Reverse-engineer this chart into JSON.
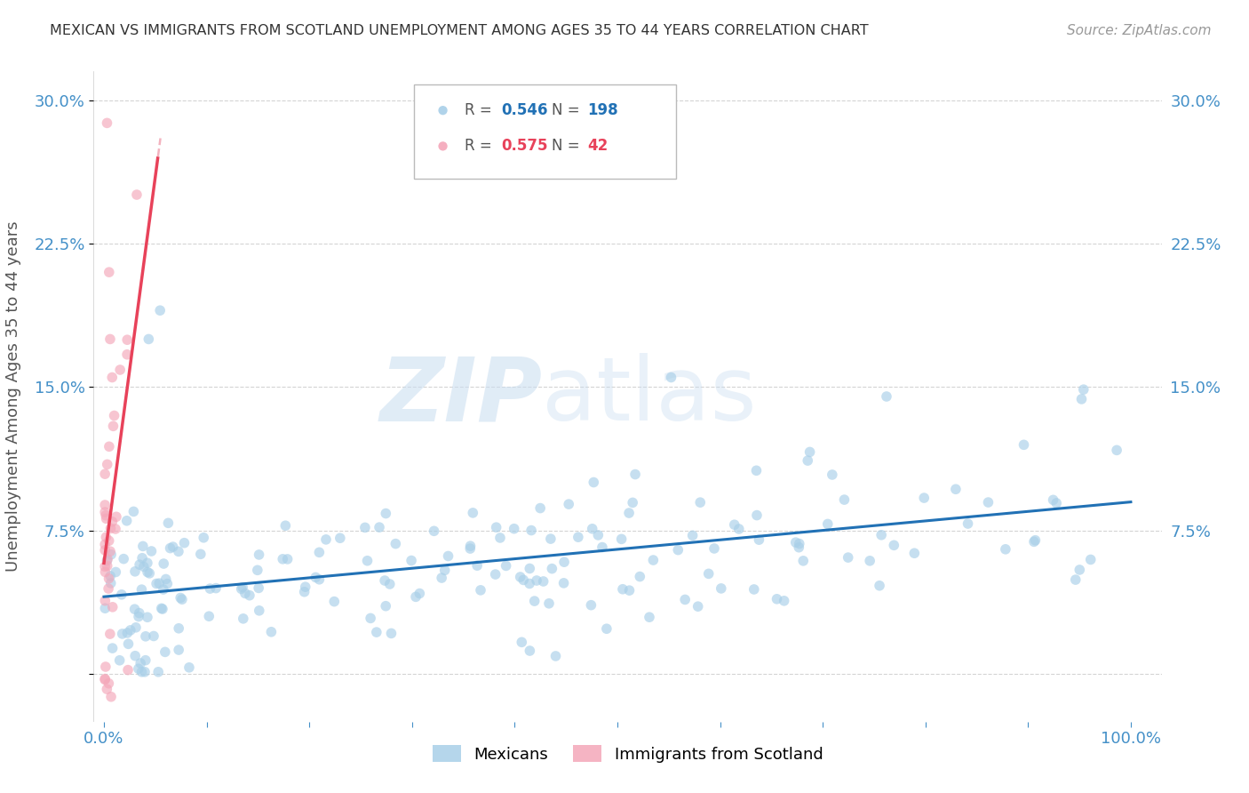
{
  "title": "MEXICAN VS IMMIGRANTS FROM SCOTLAND UNEMPLOYMENT AMONG AGES 35 TO 44 YEARS CORRELATION CHART",
  "source": "Source: ZipAtlas.com",
  "ylabel": "Unemployment Among Ages 35 to 44 years",
  "watermark_zip": "ZIP",
  "watermark_atlas": "atlas",
  "xlim": [
    -0.01,
    1.03
  ],
  "ylim": [
    -0.025,
    0.315
  ],
  "yticks": [
    0.0,
    0.075,
    0.15,
    0.225,
    0.3
  ],
  "ytick_labels_left": [
    "",
    "7.5%",
    "15.0%",
    "22.5%",
    "30.0%"
  ],
  "ytick_labels_right": [
    "",
    "7.5%",
    "15.0%",
    "22.5%",
    "30.0%"
  ],
  "xtick_vals": [
    0.0,
    0.1,
    0.2,
    0.3,
    0.4,
    0.5,
    0.6,
    0.7,
    0.8,
    0.9,
    1.0
  ],
  "xtick_labels": [
    "0.0%",
    "",
    "",
    "",
    "",
    "",
    "",
    "",
    "",
    "",
    "100.0%"
  ],
  "blue_scatter_color": "#a8cfe8",
  "pink_scatter_color": "#f4a7b9",
  "blue_line_color": "#2171b5",
  "pink_line_color": "#e8425a",
  "pink_dash_color": "#f0a0b0",
  "blue_R": 0.546,
  "blue_N": 198,
  "pink_R": 0.575,
  "pink_N": 42,
  "grid_color": "#d0d0d0",
  "title_color": "#333333",
  "axis_label_color": "#555555",
  "tick_label_color": "#4490c8",
  "background_color": "#ffffff",
  "scatter_alpha": 0.65,
  "scatter_size": 70,
  "legend_label_color": "#666666",
  "legend_border_color": "#bbbbbb"
}
